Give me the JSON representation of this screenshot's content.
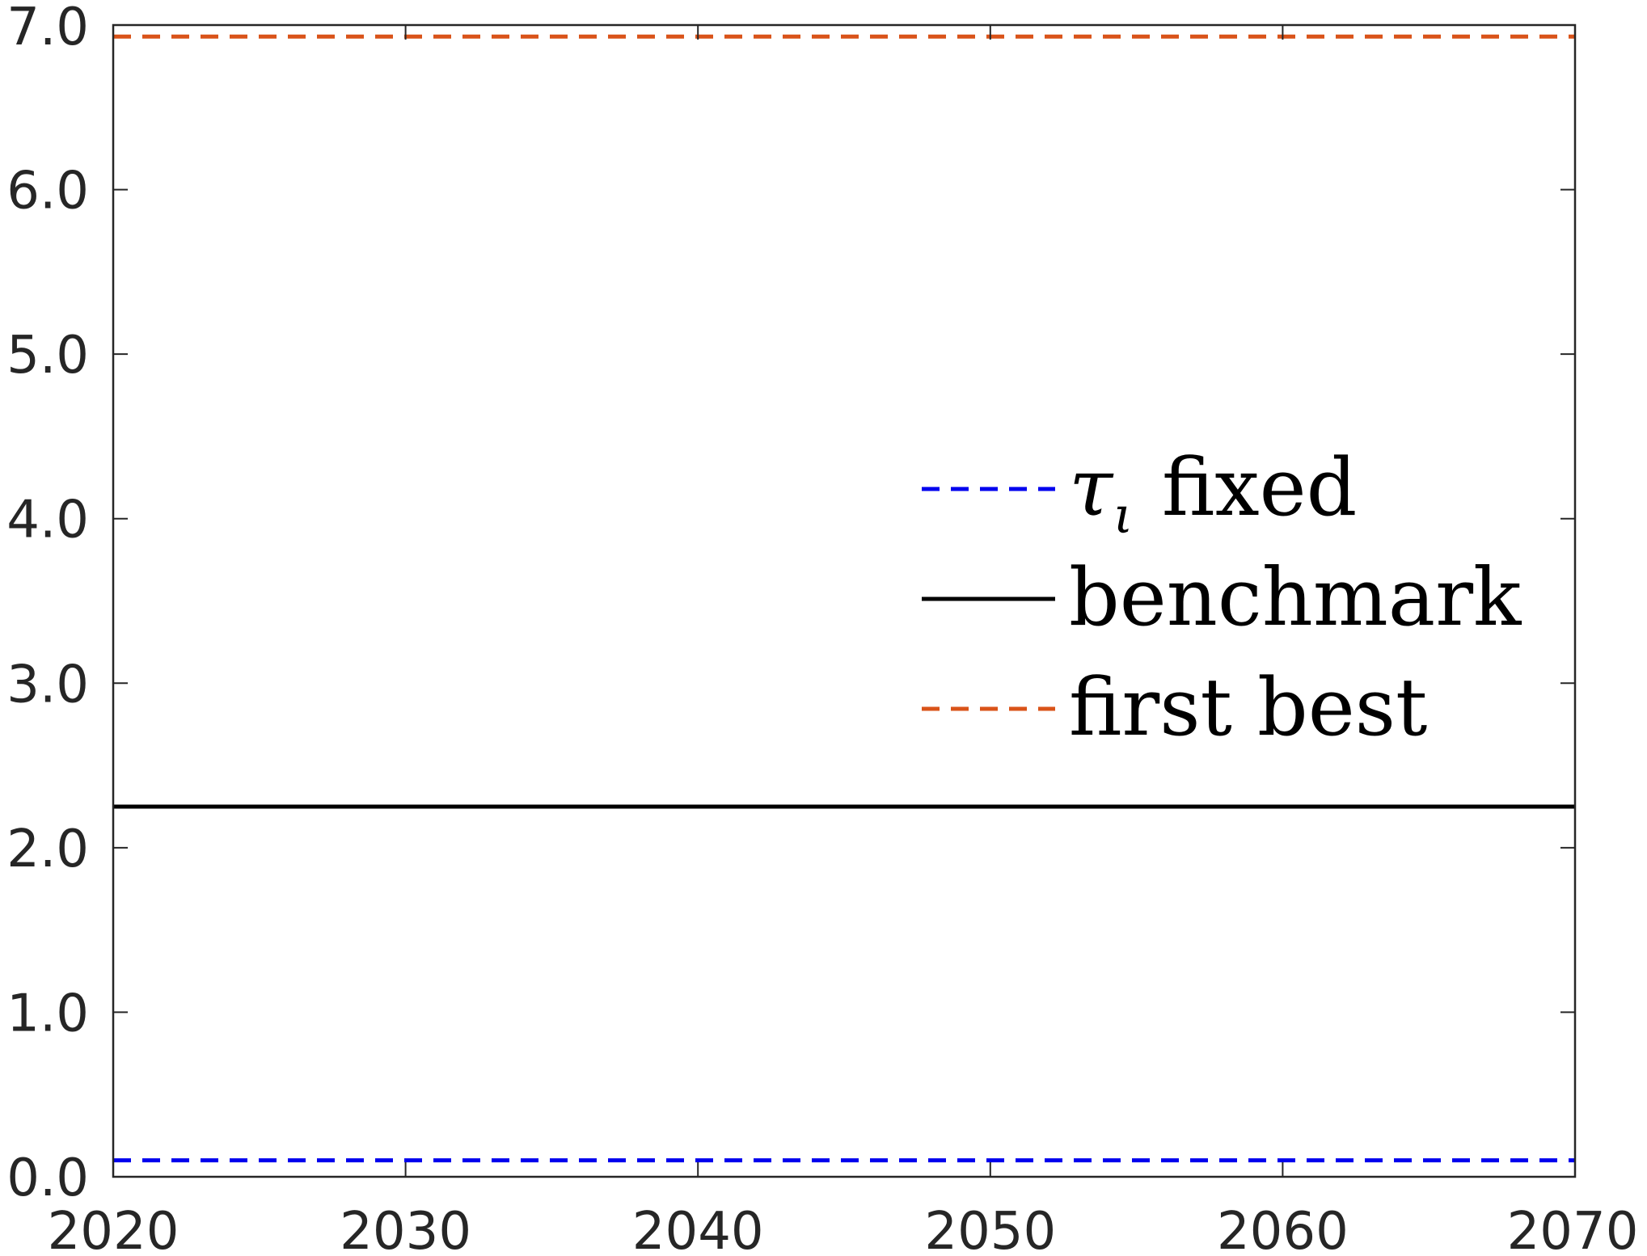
{
  "chart_data": {
    "type": "line",
    "title": "",
    "xlabel": "",
    "ylabel": "",
    "xlim": [
      2020,
      2070
    ],
    "ylim": [
      0.0,
      7.0
    ],
    "xticks": [
      2020,
      2030,
      2040,
      2050,
      2060,
      2070
    ],
    "xtick_labels": [
      "2020",
      "2030",
      "2040",
      "2050",
      "2060",
      "2070"
    ],
    "yticks": [
      0.0,
      1.0,
      2.0,
      3.0,
      4.0,
      5.0,
      6.0,
      7.0
    ],
    "ytick_labels": [
      "0.0",
      "1.0",
      "2.0",
      "3.0",
      "4.0",
      "5.0",
      "6.0",
      "7.0"
    ],
    "grid": false,
    "legend_position": "center-right",
    "x": [
      2020,
      2070
    ],
    "series": [
      {
        "name": "τι fixed",
        "name_main": "τ",
        "name_sub": "ι",
        "name_rest": "fixed",
        "values": [
          0.1,
          0.1
        ],
        "color": "#0000ee",
        "style": "dashed"
      },
      {
        "name": "benchmark",
        "values": [
          2.25,
          2.25
        ],
        "color": "#000000",
        "style": "solid"
      },
      {
        "name": "first best",
        "values": [
          6.93,
          6.93
        ],
        "color": "#d95319",
        "style": "dashed"
      }
    ]
  }
}
